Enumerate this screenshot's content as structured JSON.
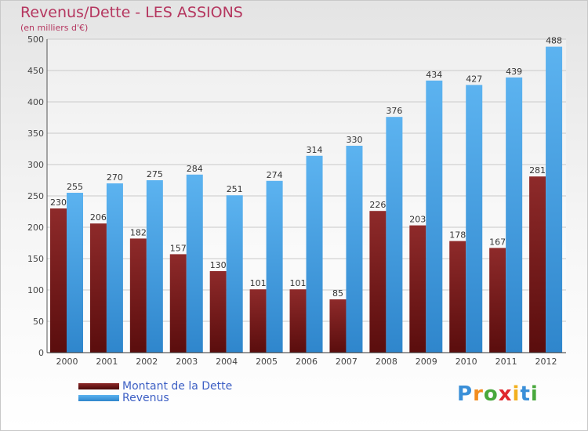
{
  "chart_data": {
    "type": "bar",
    "title": "Revenus/Dette - LES ASSIONS",
    "subtitle": "(en milliers d'€)",
    "categories": [
      "2000",
      "2001",
      "2002",
      "2003",
      "2004",
      "2005",
      "2006",
      "2007",
      "2008",
      "2009",
      "2010",
      "2011",
      "2012"
    ],
    "series": [
      {
        "name": "Montant de la Dette",
        "color": "#7a1c1c",
        "values": [
          230,
          206,
          182,
          157,
          130,
          101,
          101,
          85,
          226,
          203,
          178,
          167,
          281
        ]
      },
      {
        "name": "Revenus",
        "color": "#4aa3e6",
        "values": [
          255,
          270,
          275,
          284,
          251,
          274,
          314,
          330,
          376,
          434,
          427,
          439,
          488
        ]
      }
    ],
    "ylim": [
      0,
      500
    ],
    "yticks": [
      0,
      50,
      100,
      150,
      200,
      250,
      300,
      350,
      400,
      450,
      500
    ],
    "grid": true,
    "legend_position": "bottom-left"
  },
  "logo": {
    "letters": [
      "P",
      "r",
      "o",
      "x",
      "i",
      "t",
      "i"
    ],
    "colors": [
      "#3a8fd8",
      "#f28c1e",
      "#48a83c",
      "#e0282e",
      "#f2b01e",
      "#3a8fd8",
      "#48a83c"
    ]
  }
}
